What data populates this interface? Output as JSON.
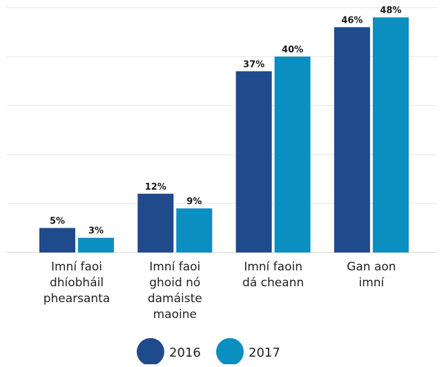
{
  "chart_data": {
    "type": "bar",
    "categories": [
      [
        "Imní faoi",
        "dhíobháil",
        "phearsanta"
      ],
      [
        "Imní faoi",
        "ghoid nó",
        "damáiste",
        "maoine"
      ],
      [
        "Imní faoin",
        "dá cheann"
      ],
      [
        "Gan aon",
        "imní"
      ]
    ],
    "series": [
      {
        "name": "2016",
        "values": [
          5,
          12,
          37,
          46
        ],
        "labels": [
          "5%",
          "12%",
          "37%",
          "46%"
        ]
      },
      {
        "name": "2017",
        "values": [
          3,
          9,
          40,
          48
        ],
        "labels": [
          "3%",
          "9%",
          "40%",
          "48%"
        ]
      }
    ],
    "ylim": [
      0,
      50
    ],
    "grid": true,
    "legend_position": "bottom",
    "colors": {
      "2016": "#1f4a8c",
      "2017": "#0b8fc0",
      "grid": "#e4e4e4"
    }
  }
}
